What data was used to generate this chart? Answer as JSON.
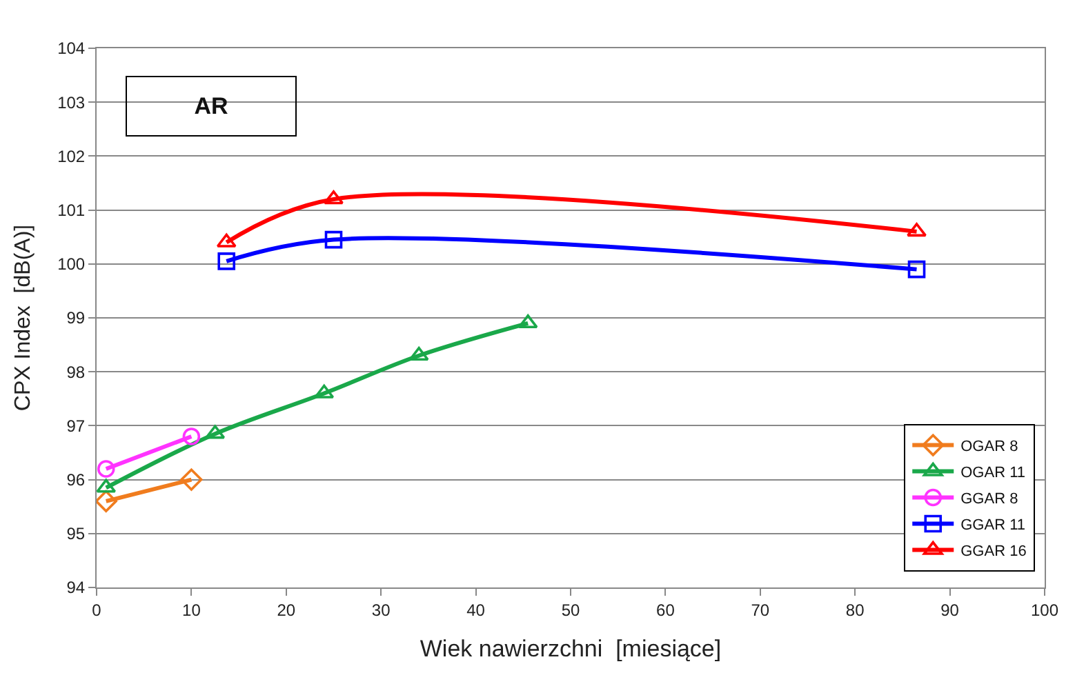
{
  "chart_data": {
    "type": "line",
    "xlabel": "Wiek nawierzchni  [miesiące]",
    "ylabel": "CPX Index  [dB(A)]",
    "annotations": [
      "AR"
    ],
    "xlim": [
      0,
      100
    ],
    "xticks": [
      0,
      10,
      20,
      30,
      40,
      50,
      60,
      70,
      80,
      90,
      100
    ],
    "ylim": [
      94,
      104
    ],
    "yticks": [
      94,
      95,
      96,
      97,
      98,
      99,
      100,
      101,
      102,
      103,
      104
    ],
    "grid": "y",
    "legend": "bottom right",
    "line_style": "solid",
    "series": [
      {
        "name": "OGAR 8",
        "color": "#f07c1e",
        "marker": "diamond",
        "x": [
          1,
          10
        ],
        "values": [
          95.6,
          96.0
        ]
      },
      {
        "name": "OGAR 11",
        "color": "#1aa84a",
        "marker": "triangle",
        "x": [
          1,
          12.5,
          24,
          34,
          45.5
        ],
        "values": [
          95.85,
          96.85,
          97.6,
          98.3,
          98.9
        ]
      },
      {
        "name": "GGAR 8",
        "color": "#ff33ff",
        "marker": "circle",
        "x": [
          1,
          10
        ],
        "values": [
          96.2,
          96.8
        ]
      },
      {
        "name": "GGAR 11",
        "color": "#0000ff",
        "marker": "square",
        "x": [
          13.7,
          25,
          86.5
        ],
        "values": [
          100.05,
          100.45,
          99.9
        ]
      },
      {
        "name": "GGAR 16",
        "color": "#ff0000",
        "marker": "triangle",
        "x": [
          13.7,
          25,
          86.5
        ],
        "values": [
          100.4,
          101.2,
          100.6
        ]
      }
    ]
  }
}
